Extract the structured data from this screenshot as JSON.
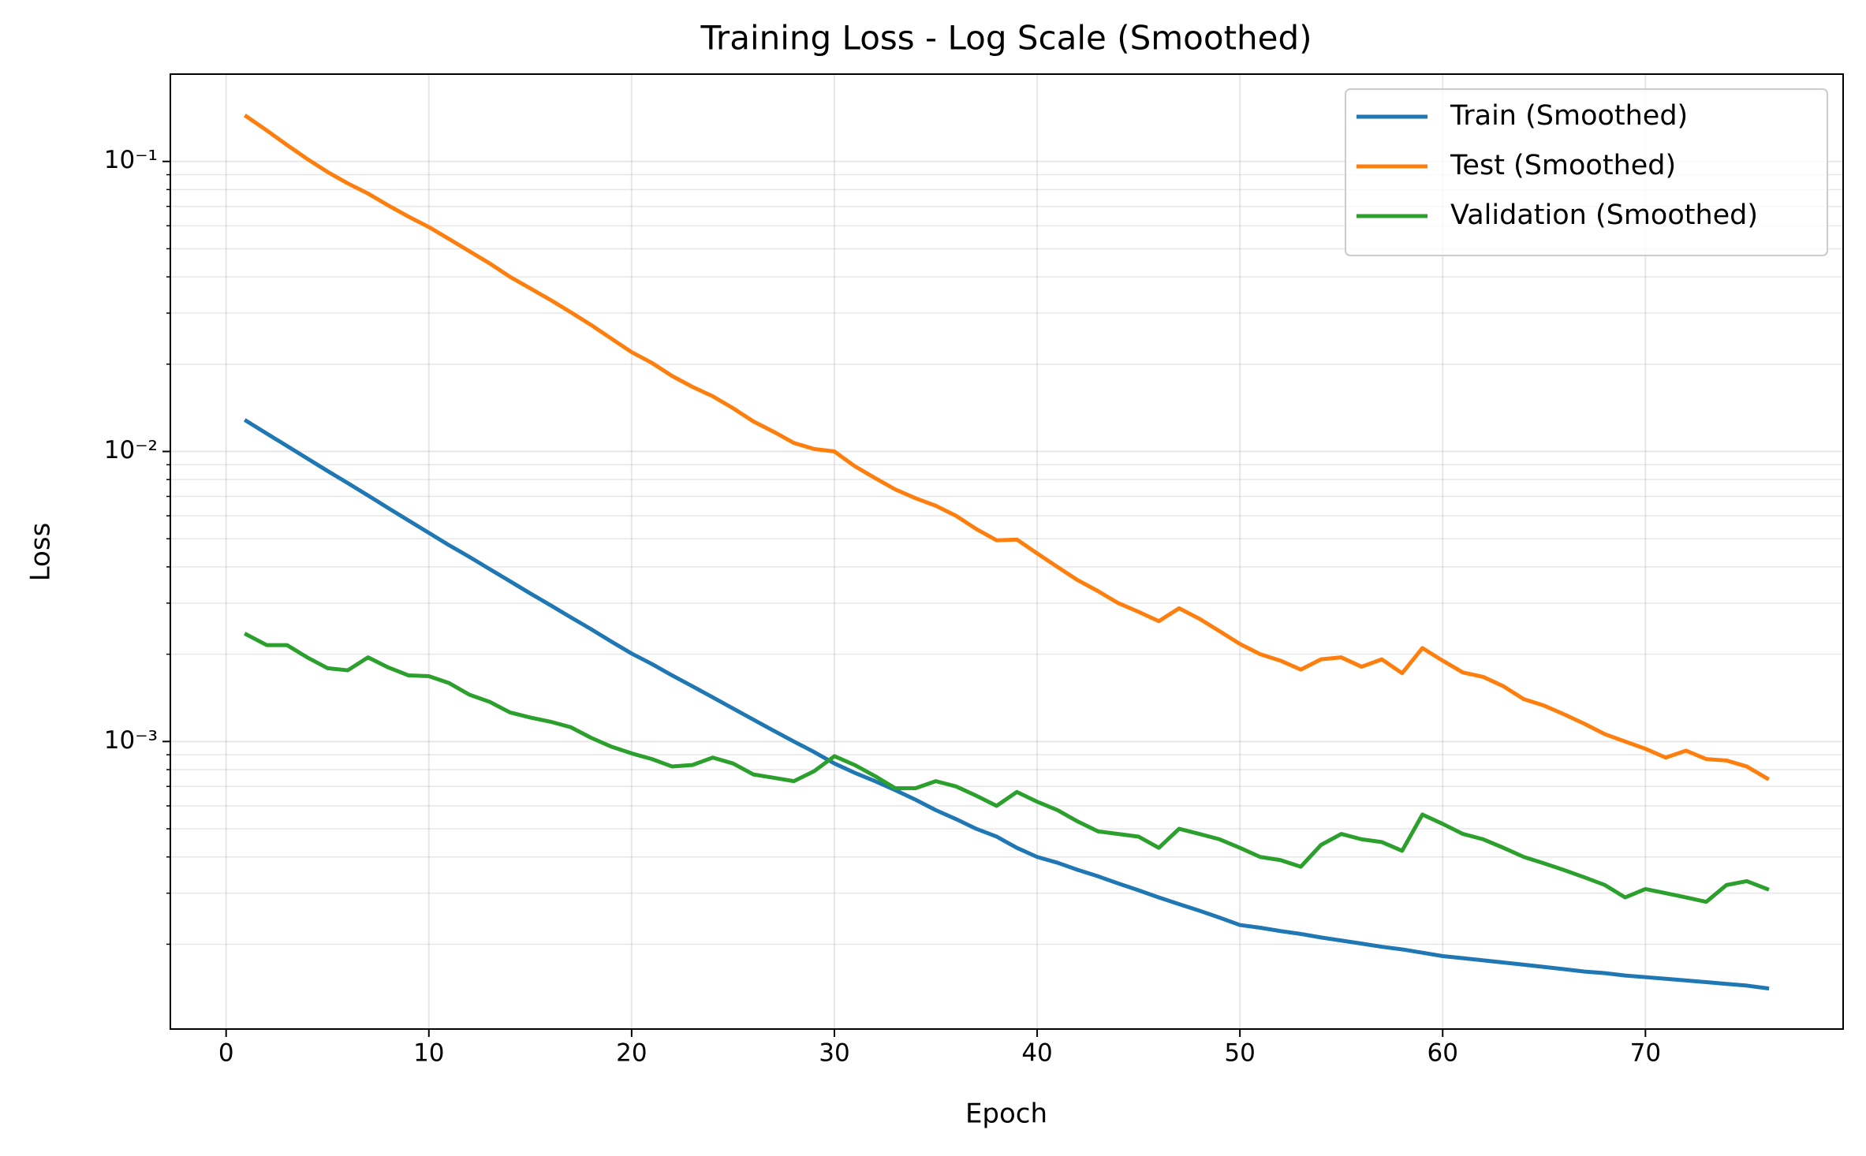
{
  "chart_data": {
    "type": "line",
    "title": "Training Loss - Log Scale (Smoothed)",
    "xlabel": "Epoch",
    "ylabel": "Loss",
    "yscale": "log",
    "grid": true,
    "legend": "upper right",
    "xlim": [
      -2.75,
      79.75
    ],
    "ylim": [
      0.000102,
      0.2
    ],
    "xticks": [
      0,
      10,
      20,
      30,
      40,
      50,
      60,
      70
    ],
    "yticks": [
      {
        "value": 0.001,
        "label": "10⁻³"
      },
      {
        "value": 0.01,
        "label": "10⁻²"
      },
      {
        "value": 0.1,
        "label": "10⁻¹"
      }
    ],
    "yticks_minor": [
      0.0002,
      0.0003,
      0.0004,
      0.0005,
      0.0006,
      0.0007,
      0.0008,
      0.0009,
      0.002,
      0.003,
      0.004,
      0.005,
      0.006,
      0.007,
      0.008,
      0.009,
      0.02,
      0.03,
      0.04,
      0.05,
      0.06,
      0.07,
      0.08,
      0.09
    ],
    "x": [
      1,
      2,
      3,
      4,
      5,
      6,
      7,
      8,
      9,
      10,
      11,
      12,
      13,
      14,
      15,
      16,
      17,
      18,
      19,
      20,
      21,
      22,
      23,
      24,
      25,
      26,
      27,
      28,
      29,
      30,
      31,
      32,
      33,
      34,
      35,
      36,
      37,
      38,
      39,
      40,
      41,
      42,
      43,
      44,
      45,
      46,
      47,
      48,
      49,
      50,
      51,
      52,
      53,
      54,
      55,
      56,
      57,
      58,
      59,
      60,
      61,
      62,
      63,
      64,
      65,
      66,
      67,
      68,
      69,
      70,
      71,
      72,
      73,
      74,
      75,
      76
    ],
    "series": [
      {
        "name": "Train (Smoothed)",
        "color": "#1f77b4",
        "values": [
          0.01274,
          0.01153,
          0.01045,
          0.00946,
          0.00857,
          0.00778,
          0.00705,
          0.00638,
          0.00578,
          0.00524,
          0.00475,
          0.00433,
          0.00393,
          0.00357,
          0.00324,
          0.00295,
          0.00268,
          0.00244,
          0.00221,
          0.00201,
          0.00185,
          0.00169,
          0.00155,
          0.00142,
          0.0013,
          0.00119,
          0.00109,
          0.001,
          0.00092,
          0.00084,
          0.00078,
          0.00073,
          0.00068,
          0.00063,
          0.00058,
          0.00054,
          0.0005,
          0.00047,
          0.00043,
          0.0004,
          0.000382,
          0.000361,
          0.000343,
          0.000324,
          0.000307,
          0.00029,
          0.000275,
          0.000261,
          0.000247,
          0.000233,
          0.000228,
          0.000222,
          0.000217,
          0.000211,
          0.000206,
          0.000201,
          0.000196,
          0.000192,
          0.000187,
          0.000182,
          0.000179,
          0.000176,
          0.000173,
          0.00017,
          0.000167,
          0.000164,
          0.000161,
          0.000159,
          0.000156,
          0.000154,
          0.000152,
          0.00015,
          0.000148,
          0.000146,
          0.000144,
          0.000141
        ]
      },
      {
        "name": "Test (Smoothed)",
        "color": "#ff7f0e",
        "values": [
          0.143,
          0.128,
          0.114,
          0.102,
          0.092,
          0.084,
          0.0775,
          0.0705,
          0.0645,
          0.0594,
          0.054,
          0.049,
          0.0445,
          0.04,
          0.0365,
          0.0333,
          0.0302,
          0.0273,
          0.0245,
          0.022,
          0.0202,
          0.0182,
          0.0167,
          0.0155,
          0.0141,
          0.0127,
          0.0117,
          0.0107,
          0.0102,
          0.01,
          0.0089,
          0.0081,
          0.0074,
          0.0069,
          0.0065,
          0.006,
          0.0054,
          0.00494,
          0.00497,
          0.00445,
          0.004,
          0.0036,
          0.0033,
          0.003,
          0.0028,
          0.0026,
          0.00288,
          0.00265,
          0.0024,
          0.00217,
          0.002,
          0.0019,
          0.00177,
          0.00192,
          0.00195,
          0.00181,
          0.00192,
          0.00172,
          0.0021,
          0.0019,
          0.00173,
          0.00167,
          0.00155,
          0.0014,
          0.00133,
          0.00124,
          0.00115,
          0.00106,
          0.001,
          0.000944,
          0.00088,
          0.00093,
          0.00087,
          0.00086,
          0.00082,
          0.000746
        ]
      },
      {
        "name": "Validation (Smoothed)",
        "color": "#2ca02c",
        "values": [
          0.00234,
          0.00215,
          0.00215,
          0.00195,
          0.00179,
          0.00176,
          0.00195,
          0.0018,
          0.00169,
          0.00168,
          0.00159,
          0.00145,
          0.00137,
          0.00126,
          0.00121,
          0.00117,
          0.00112,
          0.00103,
          0.00096,
          0.00091,
          0.00087,
          0.00082,
          0.00083,
          0.00088,
          0.00084,
          0.00077,
          0.00075,
          0.00073,
          0.00079,
          0.00089,
          0.00083,
          0.00076,
          0.00069,
          0.00069,
          0.00073,
          0.0007,
          0.00065,
          0.0006,
          0.00067,
          0.00062,
          0.00058,
          0.00053,
          0.00049,
          0.00048,
          0.00047,
          0.00043,
          0.0005,
          0.00048,
          0.00046,
          0.00043,
          0.0004,
          0.00039,
          0.00037,
          0.00044,
          0.00048,
          0.00046,
          0.00045,
          0.00042,
          0.00056,
          0.00052,
          0.00048,
          0.00046,
          0.00043,
          0.0004,
          0.00038,
          0.00036,
          0.00034,
          0.00032,
          0.00029,
          0.00031,
          0.0003,
          0.00029,
          0.00028,
          0.00032,
          0.00033,
          0.00031
        ]
      }
    ]
  }
}
